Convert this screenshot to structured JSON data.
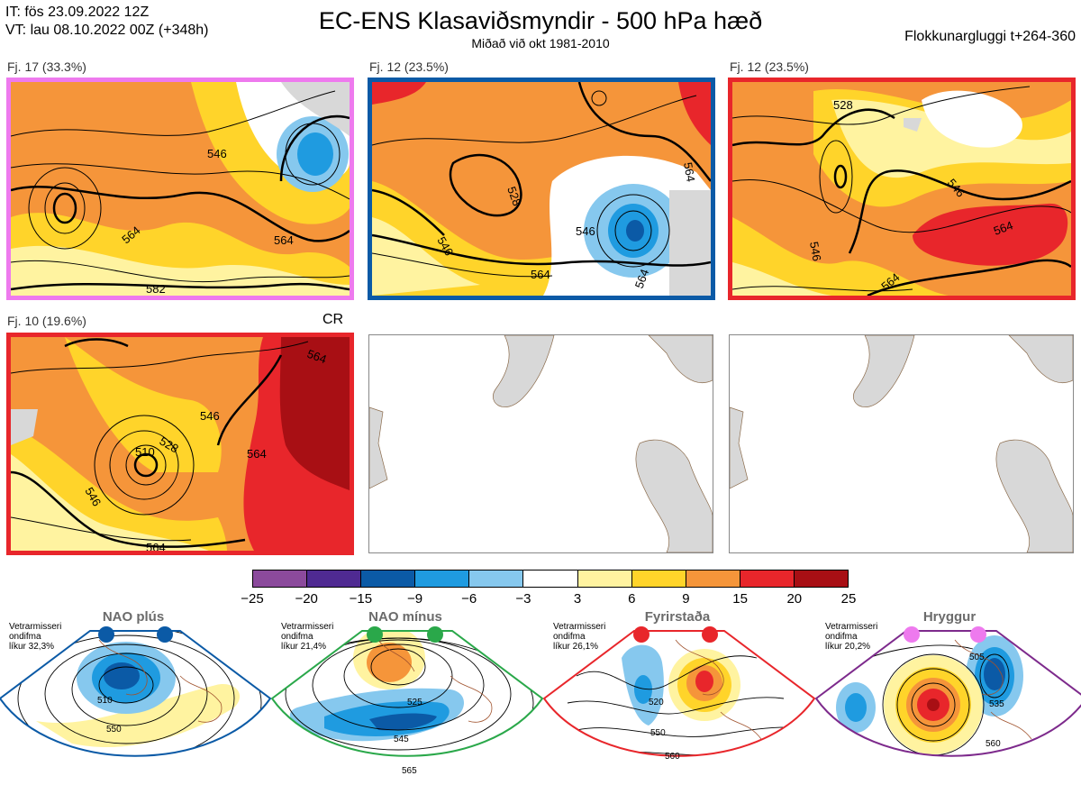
{
  "header": {
    "issue_time": "IT: fös 23.09.2022 12Z",
    "valid_time": "VT: lau 08.10.2022 00Z  (+348h)",
    "title": "EC-ENS Klasaviðsmyndir - 500 hPa hæð",
    "subtitle": "Miðað við okt 1981-2010",
    "window": "Flokkunargluggi t+264-360"
  },
  "panels": [
    {
      "label": "Fj. 17 (33.3%)",
      "border_color": "#ee7aee",
      "contours": [
        "546",
        "564",
        "582",
        "564"
      ]
    },
    {
      "label": "Fj. 12 (23.5%)",
      "border_color": "#0b5aa6",
      "contours": [
        "528",
        "546",
        "564",
        "564",
        "546",
        "564"
      ]
    },
    {
      "label": "Fj. 12 (23.5%)",
      "border_color": "#e8262b",
      "contours": [
        "528",
        "546",
        "546",
        "564",
        "564"
      ]
    },
    {
      "label": "Fj. 10 (19.6%)",
      "border_color": "#e8262b",
      "regime_code": "CR",
      "contours": [
        "510",
        "528",
        "546",
        "546",
        "564",
        "564",
        "564"
      ]
    }
  ],
  "colorbar": {
    "ticks": [
      "−25",
      "−20",
      "−15",
      "−9",
      "−6",
      "−3",
      "3",
      "6",
      "9",
      "15",
      "20",
      "25"
    ],
    "colors": [
      "#8b4a9c",
      "#4f2a92",
      "#0b5aa6",
      "#1f9be0",
      "#86c8ee",
      "#ffffff",
      "#fff3a0",
      "#ffd42a",
      "#f5953a",
      "#e8262b",
      "#a80f14"
    ]
  },
  "regimes": [
    {
      "name": "NAO plús",
      "note": [
        "Vetrarmisseri",
        "ondifma",
        "líkur 32,3%"
      ],
      "border_color": "#0b5aa6",
      "dot_color": "#0b5aa6",
      "contours": [
        "510",
        "550"
      ]
    },
    {
      "name": "NAO mínus",
      "note": [
        "Vetrarmisseri",
        "ondifma",
        "líkur 21,4%"
      ],
      "border_color": "#2aa84a",
      "dot_color": "#2aa84a",
      "contours": [
        "525",
        "545",
        "565"
      ]
    },
    {
      "name": "Fyrirstaða",
      "note": [
        "Vetrarmisseri",
        "ondifma",
        "líkur 26,1%"
      ],
      "border_color": "#e8262b",
      "dot_color": "#e8262b",
      "contours": [
        "520",
        "550",
        "560"
      ]
    },
    {
      "name": "Hryggur",
      "note": [
        "Vetrarmisseri",
        "ondifma",
        "líkur 20,2%"
      ],
      "border_color": "#7d2a8c",
      "dot_color": "#ee7aee",
      "contours": [
        "505",
        "535",
        "560"
      ]
    }
  ]
}
